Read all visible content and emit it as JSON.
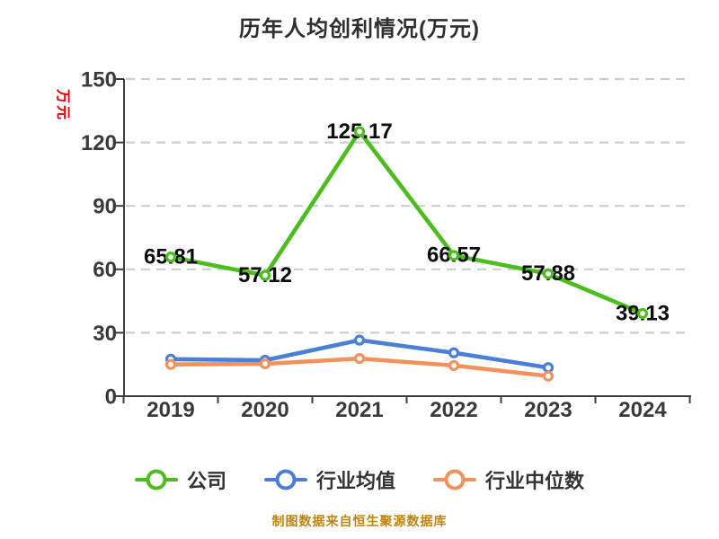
{
  "title": "历年人均创利情况(万元)",
  "y_axis_unit": "万元",
  "footer": "制图数据来自恒生聚源数据库",
  "colors": {
    "company": "#4bbd1c",
    "industry_average": "#4a7fd8",
    "industry_median": "#f2925a",
    "grid": "#cdcdcd",
    "axis": "#3d3d3d",
    "tick_label": "#3a3a3a",
    "data_label": "#0d0d0d",
    "unit_label": "#e60000",
    "footer_text": "#bb8412",
    "marker_fill": "#ffffff"
  },
  "chart_data": {
    "type": "line",
    "title": "历年人均创利情况(万元)",
    "categories": [
      "2019",
      "2020",
      "2021",
      "2022",
      "2023",
      "2024"
    ],
    "series": [
      {
        "name": "公司",
        "slug": "company",
        "color": "#4bbd1c",
        "values": [
          65.81,
          57.12,
          125.17,
          66.57,
          57.88,
          39.13
        ],
        "labeled": true
      },
      {
        "name": "行业均值",
        "slug": "industry-average",
        "color": "#4a7fd8",
        "values": [
          17.5,
          17.0,
          26.5,
          20.5,
          13.5,
          null
        ],
        "labeled": false
      },
      {
        "name": "行业中位数",
        "slug": "industry-median",
        "color": "#f2925a",
        "values": [
          15.0,
          15.3,
          17.8,
          14.5,
          9.5,
          null
        ],
        "labeled": false
      }
    ],
    "ylabel": "万元",
    "ylim": [
      0,
      150
    ],
    "yticks": [
      0,
      30,
      60,
      90,
      120,
      150
    ],
    "grid": "horizontal-dashed",
    "legend_position": "bottom"
  }
}
